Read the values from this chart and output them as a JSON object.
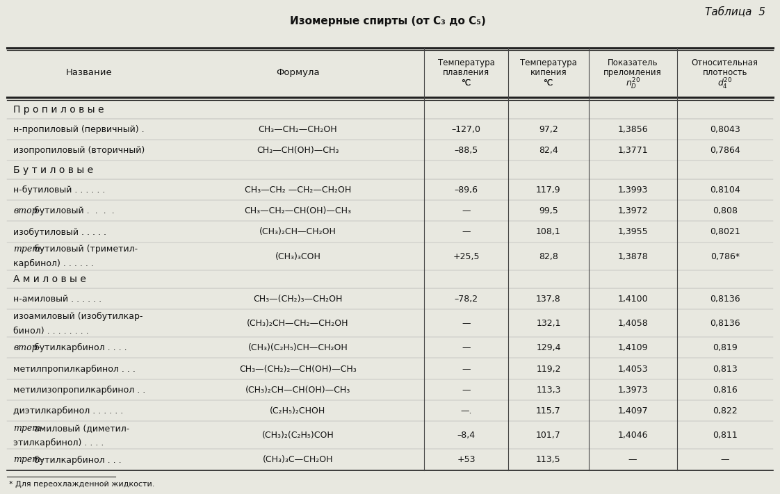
{
  "title": "Изомерные спирты (от C₃ до C₅)",
  "table_label": "Таблица  5",
  "footnote": "* Для переохлажденной жидкости.",
  "bg_color": "#e8e8e0",
  "text_color": "#111111",
  "groups": [
    {
      "group_name": "П р о п и л о в ы е",
      "rows": [
        {
          "name": "н-пропиловый (первичный) .",
          "name2": "",
          "italic_prefix": false,
          "formula": "CH₃—CH₂—CH₂OH",
          "t_melt": "–127,0",
          "t_boil": "97,2",
          "n": "1,3856",
          "d": "0,8043"
        },
        {
          "name": "изопропиловый (вторичный)",
          "name2": "",
          "italic_prefix": false,
          "formula": "CH₃—CH(OH)—CH₃",
          "t_melt": "–88,5",
          "t_boil": "82,4",
          "n": "1,3771",
          "d": "0,7864"
        }
      ]
    },
    {
      "group_name": "Б у т и л о в ы е",
      "rows": [
        {
          "name": "н-бутиловый . . . . . .",
          "name2": "",
          "italic_prefix": false,
          "formula": "CH₃—CH₂ —CH₂—CH₂OH",
          "t_melt": "–89,6",
          "t_boil": "117,9",
          "n": "1,3993",
          "d": "0,8104"
        },
        {
          "name": "втор-бутиловый .  .  .  .",
          "name2": "",
          "italic_prefix": true,
          "formula": "CH₃—CH₂—CH(OH)—CH₃",
          "t_melt": "—",
          "t_boil": "99,5",
          "n": "1,3972",
          "d": "0,808"
        },
        {
          "name": "изобутиловый . . . . .",
          "name2": "",
          "italic_prefix": false,
          "formula": "(CH₃)₂CH—CH₂OH",
          "t_melt": "—",
          "t_boil": "108,1",
          "n": "1,3955",
          "d": "0,8021"
        },
        {
          "name": "трет-бутиловый (триметил-",
          "name2": "    карбинол) . . . . . .",
          "italic_prefix": true,
          "formula": "(CH₃)₃COH",
          "t_melt": "+25,5",
          "t_boil": "82,8",
          "n": "1,3878",
          "d": "0,786*"
        }
      ]
    },
    {
      "group_name": "А м и л о в ы е",
      "rows": [
        {
          "name": "н-амиловый . . . . . .",
          "name2": "",
          "italic_prefix": false,
          "formula": "CH₃—(CH₂)₃—CH₂OH",
          "t_melt": "–78,2",
          "t_boil": "137,8",
          "n": "1,4100",
          "d": "0,8136"
        },
        {
          "name": "изоамиловый (изобутилкар-",
          "name2": "    бинол) . . . . . . . .",
          "italic_prefix": false,
          "formula": "(CH₃)₂CH—CH₂—CH₂OH",
          "t_melt": "—",
          "t_boil": "132,1",
          "n": "1,4058",
          "d": "0,8136"
        },
        {
          "name": "втор-бутилкарбинол . . . .",
          "name2": "",
          "italic_prefix": true,
          "formula": "(CH₃)(C₂H₅)CH—CH₂OH",
          "t_melt": "—",
          "t_boil": "129,4",
          "n": "1,4109",
          "d": "0,819"
        },
        {
          "name": "метилпропилкарбинол . . .",
          "name2": "",
          "italic_prefix": false,
          "formula": "CH₃—(CH₂)₂—CH(OH)—CH₃",
          "t_melt": "—",
          "t_boil": "119,2",
          "n": "1,4053",
          "d": "0,813"
        },
        {
          "name": "метилизопропилкарбинол . .",
          "name2": "",
          "italic_prefix": false,
          "formula": "(CH₃)₂CH—CH(OH)—CH₃",
          "t_melt": "—",
          "t_boil": "113,3",
          "n": "1,3973",
          "d": "0,816"
        },
        {
          "name": "диэтилкарбинол . . . . . .",
          "name2": "",
          "italic_prefix": false,
          "formula": "(C₂H₅)₂CHOH",
          "t_melt": "—.",
          "t_boil": "115,7",
          "n": "1,4097",
          "d": "0,822"
        },
        {
          "name": "трет-амиловый (диметил-",
          "name2": "    этилкарбинол) . . . .",
          "italic_prefix": true,
          "formula": "(CH₃)₂(C₂H₅)COH",
          "t_melt": "–8,4",
          "t_boil": "101,7",
          "n": "1,4046",
          "d": "0,811"
        },
        {
          "name": "трет-бутилкарбинол . . .",
          "name2": "",
          "italic_prefix": true,
          "formula": "(CH₃)₃C—CH₂OH",
          "t_melt": "+53",
          "t_boil": "113,5",
          "n": "—",
          "d": "—"
        }
      ]
    }
  ]
}
